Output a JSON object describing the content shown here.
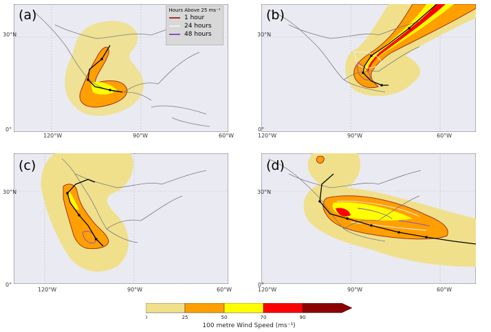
{
  "panels": [
    {
      "id": "a",
      "label": "(a)"
    },
    {
      "id": "b",
      "label": "(b)"
    },
    {
      "id": "c",
      "label": "(c)"
    },
    {
      "id": "d",
      "label": "(d)"
    }
  ],
  "axes": {
    "lon_ticks": [
      "120°W",
      "90°W",
      "60°W"
    ],
    "lat_ticks": [
      "30°N",
      "0°"
    ]
  },
  "legend": {
    "title": "Hours Above 25 ms⁻¹",
    "items": [
      {
        "label": "1 hour",
        "color": "#a0302a"
      },
      {
        "label": "24 hours",
        "color": "#f0f0f0"
      },
      {
        "label": "48 hours",
        "color": "#8a4fc0"
      }
    ]
  },
  "colorbar": {
    "label": "100 metre Wind Speed (ms⁻¹)",
    "ticks": [
      "0",
      "25",
      "50",
      "70",
      "90"
    ],
    "colors": [
      "#f0e08c",
      "#ff9f00",
      "#ffff00",
      "#ff0000",
      "#8b0000"
    ]
  },
  "colors": {
    "map_bg": "#eaeaf2",
    "coast": "#7a7a7a",
    "track": "#000000"
  }
}
